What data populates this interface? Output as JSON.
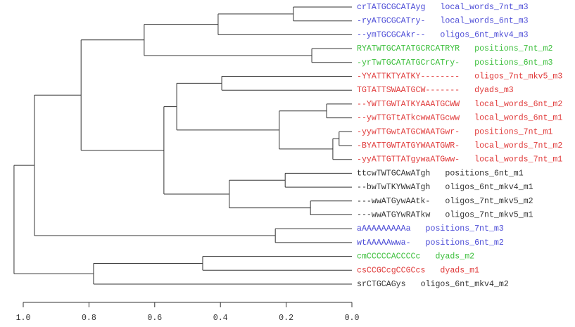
{
  "chart_data": {
    "type": "dendrogram",
    "leaves": [
      {
        "name": "crTATGCGCATAyg",
        "label": "local_words_7nt_m3",
        "color": "#4a4ad6"
      },
      {
        "name": "-ryATGCGCATry-",
        "label": "local_words_6nt_m3",
        "color": "#4a4ad6"
      },
      {
        "name": "--ymTGCGCAkr--",
        "label": "oligos_6nt_mkv4_m3",
        "color": "#4a4ad6"
      },
      {
        "name": "RYATWTGCATATGCRCATRYR",
        "label": "positions_7nt_m2",
        "color": "#3cbf3c"
      },
      {
        "name": "-yrTwTGCATATGCrCATry-",
        "label": "positions_6nt_m3",
        "color": "#3cbf3c"
      },
      {
        "name": "-YYATTKTYATKY--------",
        "label": "oligos_7nt_mkv5_m3",
        "color": "#e03a3a"
      },
      {
        "name": "TGTATTSWAATGCW-------",
        "label": "dyads_m3",
        "color": "#e03a3a"
      },
      {
        "name": "--YWTTGWTATKYAAATGCWW",
        "label": "local_words_6nt_m2",
        "color": "#e03a3a"
      },
      {
        "name": "--ywTTGTtATkcwwATGcww",
        "label": "local_words_6nt_m1",
        "color": "#e03a3a"
      },
      {
        "name": "-yywTTGwtATGCWAATGwr-",
        "label": "positions_7nt_m1",
        "color": "#e03a3a"
      },
      {
        "name": "-BYATTGWTATGYWAATGWR-",
        "label": "local_words_7nt_m2",
        "color": "#e03a3a"
      },
      {
        "name": "-yyATTGTTATgywaATGww-",
        "label": "local_words_7nt_m1",
        "color": "#e03a3a"
      },
      {
        "name": "ttcwTWTGCAwATgh",
        "label": "positions_6nt_m1",
        "color": "#333333"
      },
      {
        "name": "--bwTwTKYWwATgh",
        "label": "oligos_6nt_mkv4_m1",
        "color": "#333333"
      },
      {
        "name": "---wwATGywAAtk-",
        "label": "oligos_7nt_mkv5_m2",
        "color": "#333333"
      },
      {
        "name": "---wwATGYwRATkw",
        "label": "oligos_7nt_mkv5_m1",
        "color": "#333333"
      },
      {
        "name": "aAAAAAAAAAa",
        "label": "positions_7nt_m3",
        "color": "#4a4ad6"
      },
      {
        "name": "wtAAAAAwwa-",
        "label": "positions_6nt_m2",
        "color": "#4a4ad6"
      },
      {
        "name": "cmCCCCCACCCCc",
        "label": "dyads_m2",
        "color": "#3cbf3c"
      },
      {
        "name": "csCCGCcgCCGCcs",
        "label": "dyads_m1",
        "color": "#e03a3a"
      },
      {
        "name": "srCTGCAGys",
        "label": "oligos_6nt_mkv4_m2",
        "color": "#333333"
      }
    ],
    "merges": [
      [
        0,
        1,
        0.178
      ],
      [
        21,
        2,
        0.407
      ],
      [
        3,
        4,
        0.122
      ],
      [
        22,
        23,
        0.632
      ],
      [
        5,
        6,
        0.396
      ],
      [
        7,
        8,
        0.077
      ],
      [
        9,
        10,
        0.039
      ],
      [
        27,
        11,
        0.058
      ],
      [
        26,
        28,
        0.221
      ],
      [
        25,
        29,
        0.533
      ],
      [
        12,
        13,
        0.203
      ],
      [
        14,
        15,
        0.126
      ],
      [
        31,
        32,
        0.373
      ],
      [
        30,
        33,
        0.572
      ],
      [
        24,
        34,
        0.824
      ],
      [
        16,
        17,
        0.233
      ],
      [
        35,
        36,
        0.966
      ],
      [
        18,
        19,
        0.454
      ],
      [
        38,
        20,
        0.786
      ],
      [
        37,
        39,
        1.028
      ]
    ],
    "xlim": [
      1.0,
      0.0
    ],
    "xticks": [
      {
        "value": 1.0,
        "label": "1.0"
      },
      {
        "value": 0.8,
        "label": "0.8"
      },
      {
        "value": 0.6,
        "label": "0.6"
      },
      {
        "value": 0.4,
        "label": "0.4"
      },
      {
        "value": 0.2,
        "label": "0.2"
      },
      {
        "value": 0.0,
        "label": "0.0"
      }
    ]
  }
}
